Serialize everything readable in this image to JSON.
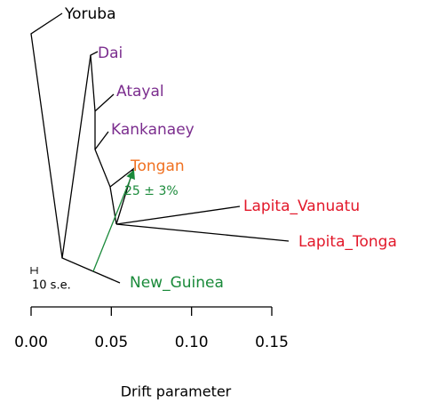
{
  "tree": {
    "leaves": [
      "Yoruba",
      "Dai",
      "Atayal",
      "Kankanaey",
      "Tongan",
      "Lapita_Vanuatu",
      "Lapita_Tonga",
      "New_Guinea"
    ],
    "migration_label": "25 ± 3%",
    "scale_bar_label": "10 s.e."
  },
  "axis": {
    "label": "Drift parameter",
    "xlim": [
      0,
      0.15
    ],
    "xticks": [
      {
        "value": 0,
        "label": "0.00"
      },
      {
        "value": 0.05,
        "label": "0.05"
      },
      {
        "value": 0.1,
        "label": "0.10"
      },
      {
        "value": 0.15,
        "label": "0.15"
      }
    ]
  }
}
